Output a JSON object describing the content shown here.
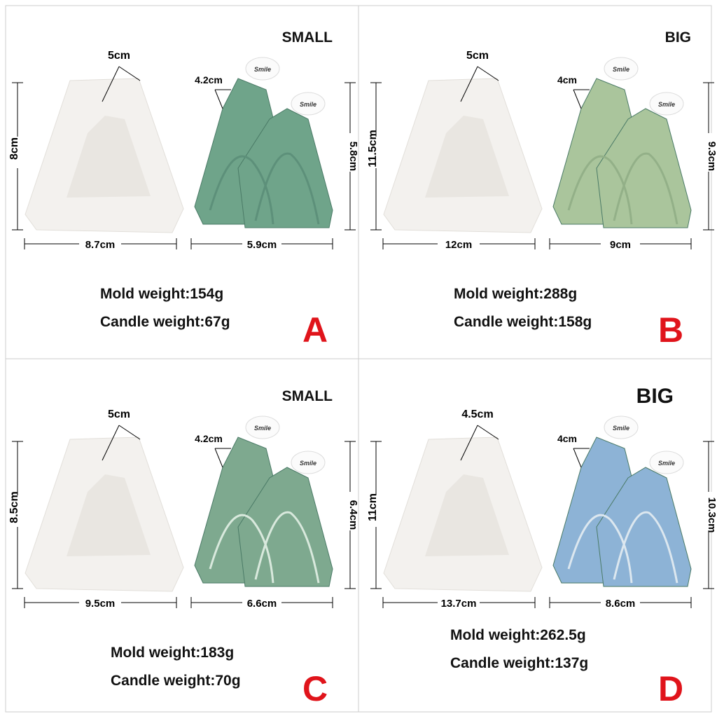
{
  "panels": [
    {
      "size": "SMALL",
      "mold": {
        "top": "5cm",
        "height": "8cm",
        "width": "8.7cm",
        "weight": "Mold weight:154g"
      },
      "candle": {
        "top": "4.2cm",
        "height": "5.8cm",
        "width": "5.9cm",
        "weight": "Candle weight:67g",
        "tag": "Smile"
      },
      "letter": "A"
    },
    {
      "size": "BIG",
      "mold": {
        "top": "5cm",
        "height": "11.5cm",
        "width": "12cm",
        "weight": "Mold weight:288g"
      },
      "candle": {
        "top": "4cm",
        "height": "9.3cm",
        "width": "9cm",
        "weight": "Candle weight:158g",
        "tag": "Smile"
      },
      "letter": "B"
    },
    {
      "size": "SMALL",
      "mold": {
        "top": "5cm",
        "height": "8.5cm",
        "width": "9.5cm",
        "weight": "Mold weight:183g"
      },
      "candle": {
        "top": "4.2cm",
        "height": "6.4cm",
        "width": "6.6cm",
        "weight": "Candle weight:70g",
        "tag": "Smile"
      },
      "letter": "C"
    },
    {
      "size": "BIG",
      "mold": {
        "top": "4.5cm",
        "height": "11cm",
        "width": "13.7cm",
        "weight": "Mold weight:262.5g"
      },
      "candle": {
        "top": "4cm",
        "height": "10.3cm",
        "width": "8.6cm",
        "weight": "Candle weight:137g",
        "tag": "Smile"
      },
      "letter": "D"
    }
  ]
}
